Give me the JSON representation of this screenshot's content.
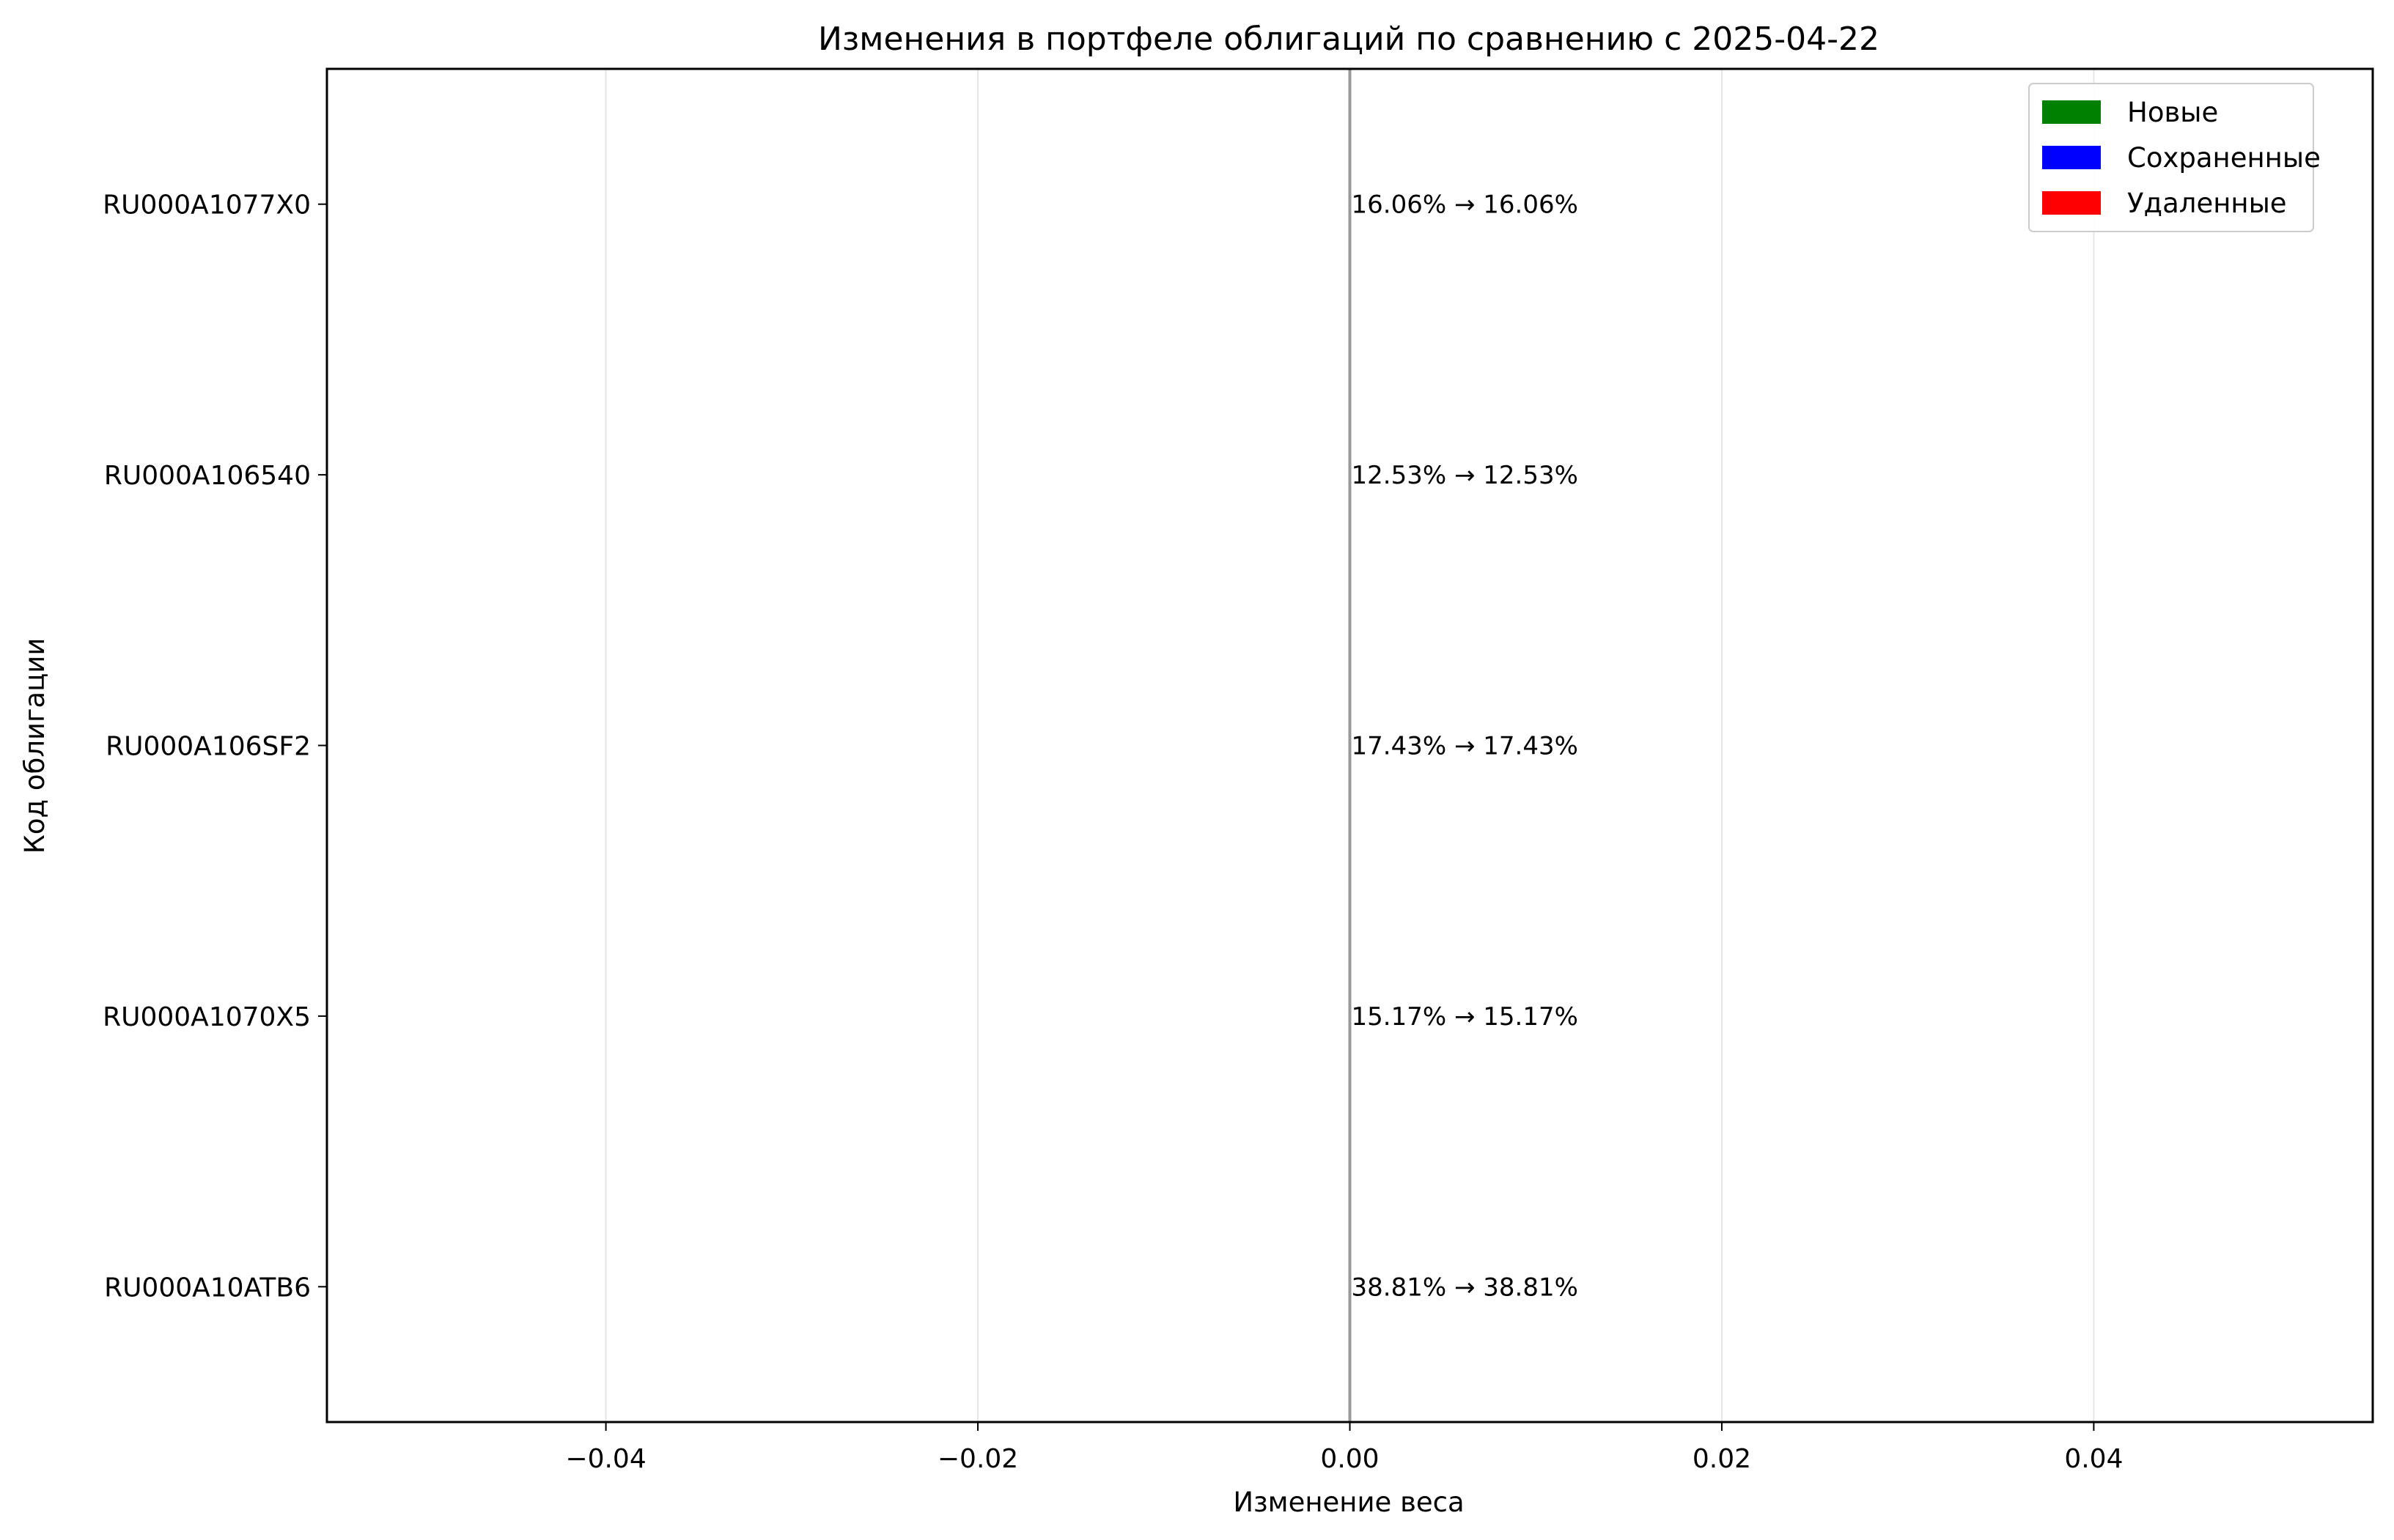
{
  "chart_data": {
    "type": "bar",
    "orientation": "horizontal",
    "title": "Изменения в портфеле облигаций по сравнению с 2025-04-22",
    "xlabel": "Изменение веса",
    "ylabel": "Код облигации",
    "xlim": [
      -0.055,
      0.055
    ],
    "x_ticks": [
      -0.04,
      -0.02,
      0.0,
      0.02,
      0.04
    ],
    "x_tick_labels": [
      "−0.04",
      "−0.02",
      "0.00",
      "0.02",
      "0.04"
    ],
    "grid": "x",
    "legend_position": "top-right",
    "categories": [
      "RU000A1077X0",
      "RU000A106540",
      "RU000A106SF2",
      "RU000A1070X5",
      "RU000A10ATB6"
    ],
    "values": [
      0,
      0,
      0,
      0,
      0
    ],
    "data_labels": [
      "16.06% → 16.06%",
      "12.53% → 12.53%",
      "17.43% → 17.43%",
      "15.17% → 15.17%",
      "38.81% → 38.81%"
    ],
    "status": [
      "Сохраненные",
      "Сохраненные",
      "Сохраненные",
      "Сохраненные",
      "Сохраненные"
    ],
    "legend": [
      {
        "label": "Новые",
        "color": "#008000"
      },
      {
        "label": "Сохраненные",
        "color": "#0000ff"
      },
      {
        "label": "Удаленные",
        "color": "#ff0000"
      }
    ]
  }
}
